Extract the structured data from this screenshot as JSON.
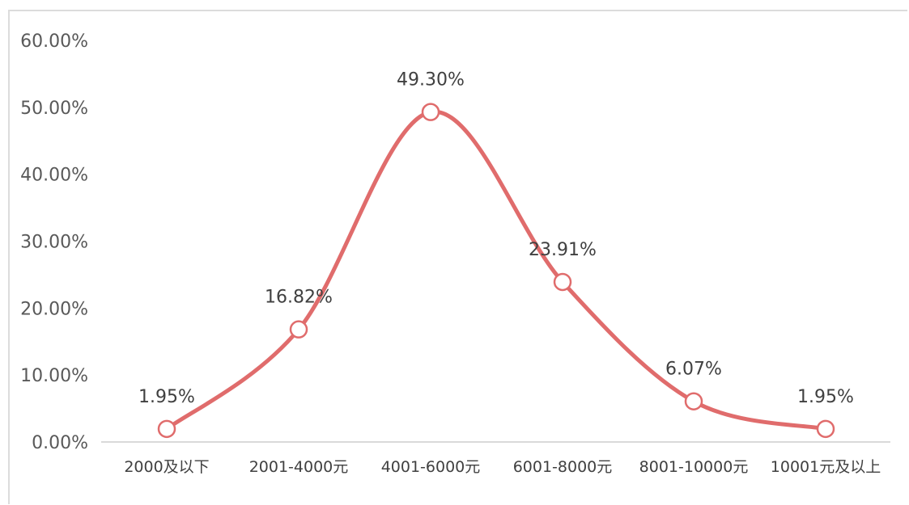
{
  "chart_data": {
    "type": "line",
    "title": "",
    "xlabel": "",
    "ylabel": "",
    "categories": [
      "2000及以下",
      "2001-4000元",
      "4001-6000元",
      "6001-8000元",
      "8001-10000元",
      "10001元及以上"
    ],
    "series": [
      {
        "values": [
          1.95,
          16.82,
          49.3,
          23.91,
          6.07,
          1.95
        ],
        "data_labels": [
          "1.95%",
          "16.82%",
          "49.30%",
          "23.91%",
          "6.07%",
          "1.95%"
        ]
      }
    ],
    "ylim": [
      0,
      60
    ],
    "yticks": [
      0,
      10,
      20,
      30,
      40,
      50,
      60
    ],
    "ytick_labels": [
      "0.00%",
      "10.00%",
      "20.00%",
      "30.00%",
      "40.00%",
      "50.00%",
      "60.00%"
    ],
    "grid": false,
    "smooth": true,
    "colors": {
      "line": "#e06c6c",
      "marker_fill": "#ffffff",
      "axis": "#d9d9d9"
    }
  }
}
